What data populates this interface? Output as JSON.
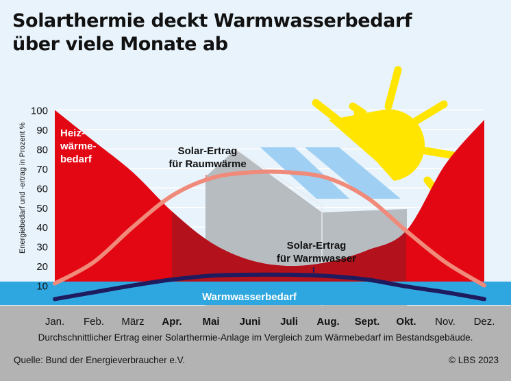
{
  "title_line1": "Solarthermie deckt Warmwasserbedarf",
  "title_line2": "über viele Monate ab",
  "caption": "Durchschnittlicher Ertrag einer  Solarthermie-Anlage im Vergleich zum Wärmebedarf im Bestandsgebäude.",
  "source": "Quelle: Bund der Energieverbraucher e.V.",
  "credit": "© LBS 2023",
  "colors": {
    "background": "#e8f3fb",
    "heating": "#e30613",
    "heating_dark": "#b3121c",
    "warmwater": "#2ea7e0",
    "solar_space": "#f08a7a",
    "solar_water": "#1e1b5e",
    "ground": "#b3b3b3",
    "house": "#b7bcc1",
    "panel": "#9fd0f3",
    "sun": "#ffe500"
  },
  "chart_data": {
    "type": "line",
    "ylabel": "Energiebedarf und -ertrag in Prozent %",
    "ylim": [
      0,
      100
    ],
    "yticks": [
      10,
      20,
      30,
      40,
      50,
      60,
      70,
      80,
      90,
      100
    ],
    "categories": [
      "Jan.",
      "Feb.",
      "März",
      "Apr.",
      "Mai",
      "Juni",
      "Juli",
      "Aug.",
      "Sept.",
      "Okt.",
      "Nov.",
      "Dez."
    ],
    "bold_categories": [
      "Apr.",
      "Mai",
      "Juni",
      "Juli",
      "Aug.",
      "Sept.",
      "Okt."
    ],
    "series": [
      {
        "name": "Heiz-\nwärme-\nbedarf",
        "kind": "area",
        "values": [
          100,
          84,
          68,
          48,
          32,
          23,
          20,
          22,
          28,
          38,
          72,
          95
        ]
      },
      {
        "name": "Warmwasserbedarf",
        "kind": "area",
        "values": [
          12,
          12,
          12,
          12,
          12,
          12,
          12,
          12,
          12,
          12,
          12,
          12
        ]
      },
      {
        "name": "Solar-Ertrag\nfür Raumwärme",
        "kind": "line",
        "values": [
          11,
          22,
          40,
          56,
          65,
          68,
          68,
          65,
          55,
          38,
          22,
          10
        ]
      },
      {
        "name": "Solar-Ertrag\nfür Warmwasser",
        "kind": "line",
        "values": [
          3,
          6.5,
          10,
          13,
          15,
          15.5,
          15.5,
          14.8,
          13,
          9.5,
          6.5,
          3
        ]
      }
    ],
    "annotations": [
      {
        "text": "Heiz-\nwärme-\nbedarf",
        "series": "heating"
      },
      {
        "text": "Solar-Ertrag\nfür Raumwärme",
        "series": "solar_space"
      },
      {
        "text": "Solar-Ertrag\nfür Warmwasser",
        "series": "solar_water"
      },
      {
        "text": "Warmwasserbedarf",
        "series": "warmwater"
      }
    ],
    "grid": true
  }
}
